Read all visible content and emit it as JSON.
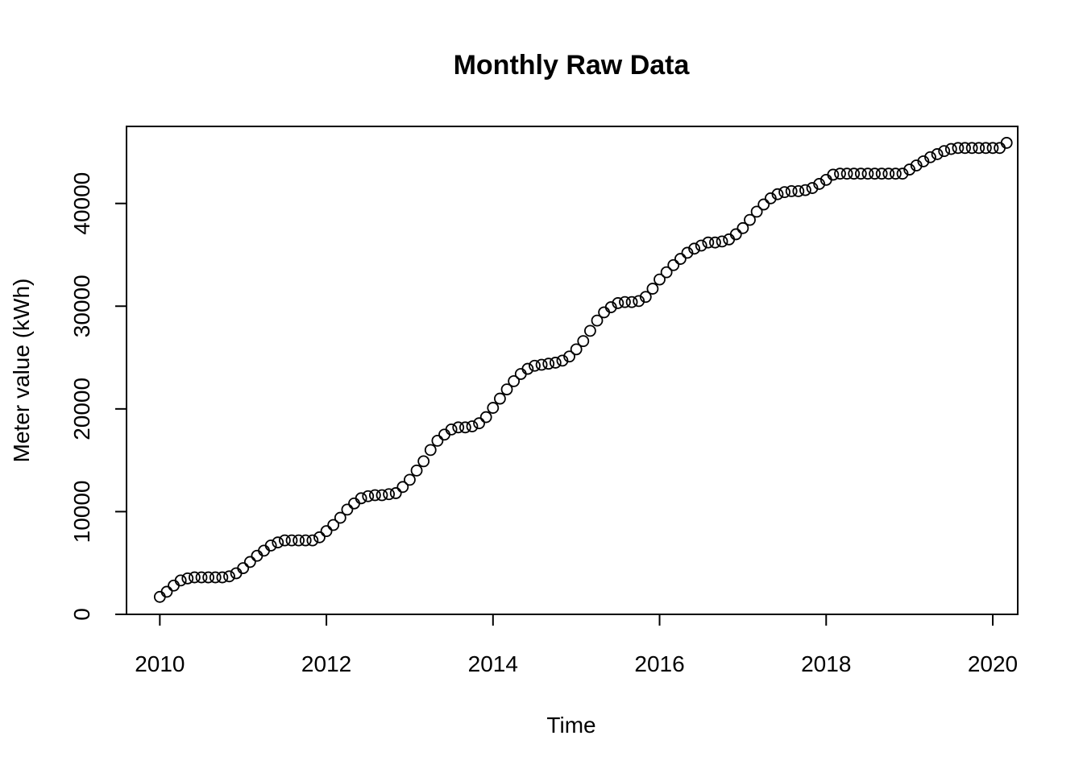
{
  "chart_data": {
    "type": "scatter",
    "title": "Monthly Raw Data",
    "xlabel": "Time",
    "ylabel": "Meter value (kWh)",
    "xlim": [
      2009.6,
      2020.3
    ],
    "ylim": [
      0,
      47500
    ],
    "x_ticks": [
      2010,
      2012,
      2014,
      2016,
      2018,
      2020
    ],
    "y_ticks": [
      0,
      10000,
      20000,
      30000,
      40000
    ],
    "grid": false,
    "legend": "none",
    "marker": "open-circle",
    "color": "#000000",
    "series": [
      {
        "start": 2010.0,
        "step": 0.0833333,
        "values": [
          1700,
          2200,
          2800,
          3300,
          3500,
          3600,
          3600,
          3600,
          3600,
          3600,
          3700,
          4000,
          4500,
          5100,
          5700,
          6200,
          6700,
          7000,
          7200,
          7200,
          7200,
          7200,
          7200,
          7500,
          8100,
          8700,
          9400,
          10200,
          10800,
          11300,
          11500,
          11600,
          11600,
          11700,
          11800,
          12400,
          13100,
          14000,
          14900,
          16000,
          16900,
          17500,
          18000,
          18200,
          18200,
          18300,
          18600,
          19200,
          20100,
          21000,
          21900,
          22700,
          23400,
          23900,
          24200,
          24300,
          24400,
          24500,
          24700,
          25100,
          25800,
          26600,
          27600,
          28600,
          29400,
          29900,
          30300,
          30400,
          30400,
          30500,
          30900,
          31700,
          32600,
          33300,
          34000,
          34600,
          35200,
          35600,
          35900,
          36200,
          36200,
          36300,
          36500,
          37000,
          37600,
          38400,
          39200,
          39900,
          40500,
          40900,
          41100,
          41200,
          41200,
          41300,
          41500,
          41900,
          42300,
          42800,
          42900,
          42900,
          42900,
          42900,
          42900,
          42900,
          42900,
          42900,
          42900,
          42900,
          43300,
          43700,
          44100,
          44500,
          44800,
          45100,
          45300,
          45400,
          45400,
          45400,
          45400,
          45400,
          45400,
          45400,
          45900
        ]
      }
    ]
  }
}
